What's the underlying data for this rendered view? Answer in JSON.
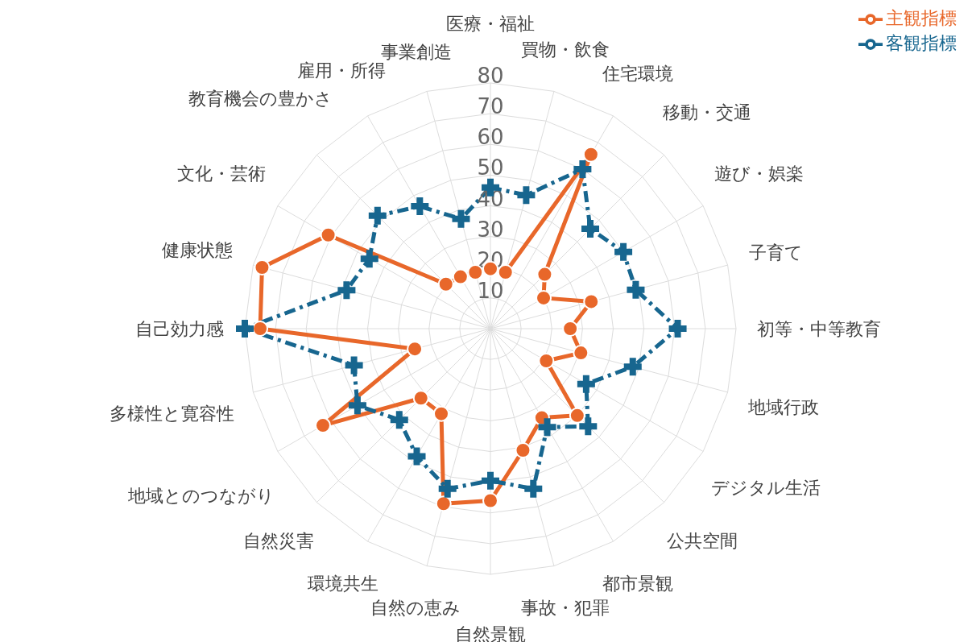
{
  "chart_data": {
    "type": "radar",
    "categories": [
      "医療・福祉",
      "買物・飲食",
      "住宅環境",
      "移動・交通",
      "遊び・娯楽",
      "子育て",
      "初等・中等教育",
      "地域行政",
      "デジタル生活",
      "公共空間",
      "都市景観",
      "事故・犯罪",
      "自然景観",
      "自然の恵み",
      "環境共生",
      "自然災害",
      "地域とのつながり",
      "多様性と寛容性",
      "自己効力感",
      "健康状態",
      "文化・芸術",
      "教育機会の豊かさ",
      "雇用・所得",
      "事業創造"
    ],
    "series": [
      {
        "name": "主観指標",
        "color": "#e8672a",
        "marker": "circle",
        "line_style": "solid",
        "values": [
          19.5,
          19,
          65.5,
          25,
          20,
          34,
          26,
          30.5,
          21,
          40,
          33.5,
          41,
          56,
          59,
          32,
          32,
          63,
          25.5,
          75,
          77,
          61,
          20.5,
          19.5,
          19
        ]
      },
      {
        "name": "客観指標",
        "color": "#17668f",
        "marker": "cross",
        "line_style": "dashed",
        "values": [
          46,
          45,
          60,
          46,
          50,
          49,
          61,
          48,
          36,
          45,
          37,
          54,
          49.5,
          54,
          48,
          42,
          50,
          46,
          80,
          48.5,
          45.5,
          52,
          46,
          37
        ]
      }
    ],
    "ylim": [
      0,
      80
    ],
    "yticks": [
      10,
      20,
      30,
      40,
      50,
      60,
      70,
      80
    ],
    "grid": true,
    "legend": "top right"
  }
}
